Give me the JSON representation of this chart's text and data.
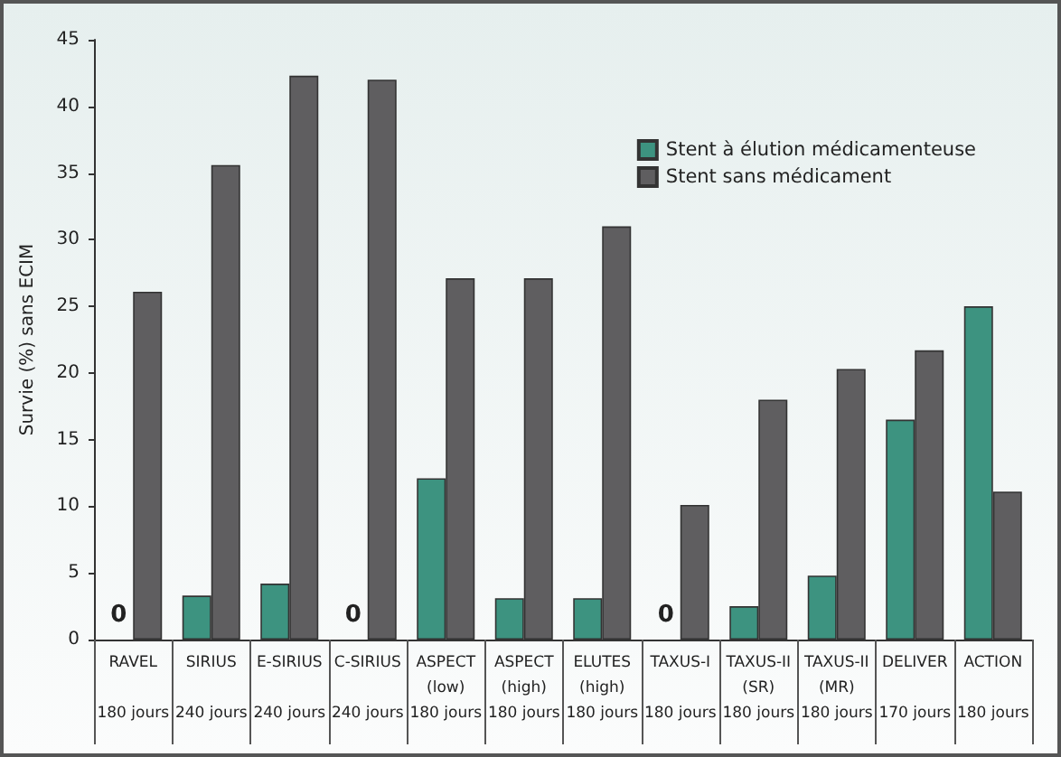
{
  "chart_data": {
    "type": "bar",
    "ylabel": "Survie (%) sans ECIM",
    "categories": [
      "RAVEL\n180 jours",
      "SIRIUS\n240 jours",
      "E-SIRIUS\n240 jours",
      "C-SIRIUS\n240 jours",
      "ASPECT\n(low)\n180 jours",
      "ASPECT\n(high)\n180 jours",
      "ELUTES\n(high)\n180 jours",
      "TAXUS-I\n180 jours",
      "TAXUS-II\n(SR)\n180 jours",
      "TAXUS-II\n(MR)\n180 jours",
      "DELIVER\n170 jours",
      "ACTION\n180 jours"
    ],
    "series": [
      {
        "name": "Stent à élution médicamenteuse",
        "color": "#3d9380",
        "values": [
          0,
          3.3,
          4.2,
          0,
          12.1,
          3.1,
          3.1,
          0,
          2.5,
          4.8,
          16.5,
          25.0
        ],
        "value_labels": [
          "0",
          null,
          null,
          "0",
          null,
          null,
          null,
          "0",
          null,
          null,
          null,
          null
        ]
      },
      {
        "name": "Stent sans médicament",
        "color": "#5f5e60",
        "values": [
          26.1,
          35.6,
          42.3,
          42.0,
          27.1,
          27.1,
          31.0,
          10.1,
          18.0,
          20.3,
          21.7,
          11.1
        ]
      }
    ],
    "ylim": [
      0,
      45
    ],
    "yticks": [
      0,
      5,
      10,
      15,
      20,
      25,
      30,
      35,
      40,
      45
    ],
    "grid": false,
    "legend": "top right"
  }
}
